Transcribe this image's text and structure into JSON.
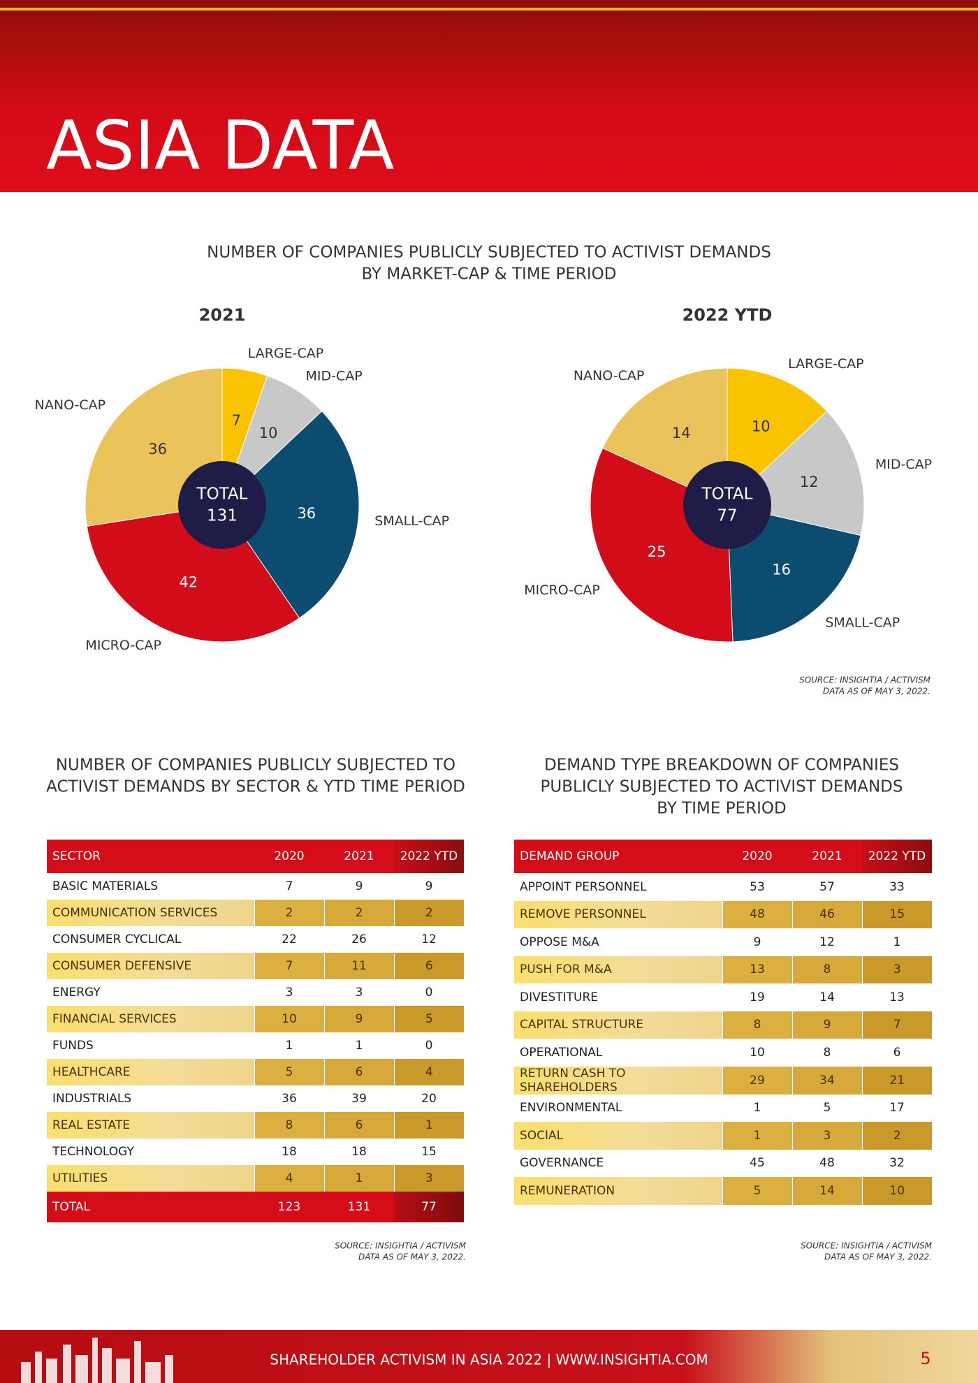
{
  "header": {
    "title": "ASIA DATA"
  },
  "chart_section": {
    "title_lines": [
      "NUMBER OF COMPANIES PUBLICLY SUBJECTED TO ACTIVIST DEMANDS",
      "BY MARKET-CAP & TIME PERIOD"
    ],
    "source_lines": [
      "SOURCE: INSIGHTIA / ACTIVISM",
      "DATA AS OF MAY 3, 2022."
    ]
  },
  "chart_data": [
    {
      "type": "pie",
      "title": "2021",
      "categories": [
        "LARGE-CAP",
        "MID-CAP",
        "SMALL-CAP",
        "MICRO-CAP",
        "NANO-CAP"
      ],
      "values": [
        7,
        10,
        36,
        42,
        36
      ],
      "colors": [
        "#f9c300",
        "#c8c8c8",
        "#0c4c70",
        "#d20c19",
        "#eac35a"
      ],
      "total_label": "TOTAL",
      "total": 131
    },
    {
      "type": "pie",
      "title": "2022 YTD",
      "categories": [
        "LARGE-CAP",
        "MID-CAP",
        "SMALL-CAP",
        "MICRO-CAP",
        "NANO-CAP"
      ],
      "values": [
        10,
        12,
        16,
        25,
        14
      ],
      "colors": [
        "#f9c300",
        "#c8c8c8",
        "#0c4c70",
        "#d20c19",
        "#eac35a"
      ],
      "total_label": "TOTAL",
      "total": 77
    }
  ],
  "sector_table": {
    "title_lines": [
      "NUMBER OF COMPANIES PUBLICLY SUBJECTED TO",
      "ACTIVIST DEMANDS BY SECTOR & YTD TIME PERIOD"
    ],
    "columns": [
      "SECTOR",
      "2020",
      "2021",
      "2022 YTD"
    ],
    "rows": [
      [
        "BASIC MATERIALS",
        7,
        9,
        9
      ],
      [
        "COMMUNICATION SERVICES",
        2,
        2,
        2
      ],
      [
        "CONSUMER CYCLICAL",
        22,
        26,
        12
      ],
      [
        "CONSUMER DEFENSIVE",
        7,
        11,
        6
      ],
      [
        "ENERGY",
        3,
        3,
        0
      ],
      [
        "FINANCIAL SERVICES",
        10,
        9,
        5
      ],
      [
        "FUNDS",
        1,
        1,
        0
      ],
      [
        "HEALTHCARE",
        5,
        6,
        4
      ],
      [
        "INDUSTRIALS",
        36,
        39,
        20
      ],
      [
        "REAL ESTATE",
        8,
        6,
        1
      ],
      [
        "TECHNOLOGY",
        18,
        18,
        15
      ],
      [
        "UTILITIES",
        4,
        1,
        3
      ]
    ],
    "total_row": [
      "TOTAL",
      123,
      131,
      77
    ],
    "source_lines": [
      "SOURCE: INSIGHTIA / ACTIVISM",
      "DATA AS OF MAY 3, 2022."
    ]
  },
  "demand_table": {
    "title_lines": [
      "DEMAND TYPE BREAKDOWN OF COMPANIES",
      "PUBLICLY SUBJECTED TO ACTIVIST DEMANDS",
      "BY TIME PERIOD"
    ],
    "columns": [
      "DEMAND GROUP",
      "2020",
      "2021",
      "2022 YTD"
    ],
    "rows": [
      [
        "APPOINT PERSONNEL",
        53,
        57,
        33
      ],
      [
        "REMOVE PERSONNEL",
        48,
        46,
        15
      ],
      [
        "OPPOSE M&A",
        9,
        12,
        1
      ],
      [
        "PUSH FOR M&A",
        13,
        8,
        3
      ],
      [
        "DIVESTITURE",
        19,
        14,
        13
      ],
      [
        "CAPITAL STRUCTURE",
        8,
        9,
        7
      ],
      [
        "OPERATIONAL",
        10,
        8,
        6
      ],
      [
        "RETURN CASH TO SHAREHOLDERS",
        29,
        34,
        21
      ],
      [
        "ENVIRONMENTAL",
        1,
        5,
        17
      ],
      [
        "SOCIAL",
        1,
        3,
        2
      ],
      [
        "GOVERNANCE",
        45,
        48,
        32
      ],
      [
        "REMUNERATION",
        5,
        14,
        10
      ]
    ],
    "source_lines": [
      "SOURCE: INSIGHTIA / ACTIVISM",
      "DATA AS OF MAY 3, 2022."
    ]
  },
  "footer": {
    "text": "SHAREHOLDER ACTIVISM IN ASIA 2022 | WWW.INSIGHTIA.COM",
    "page": 5
  }
}
